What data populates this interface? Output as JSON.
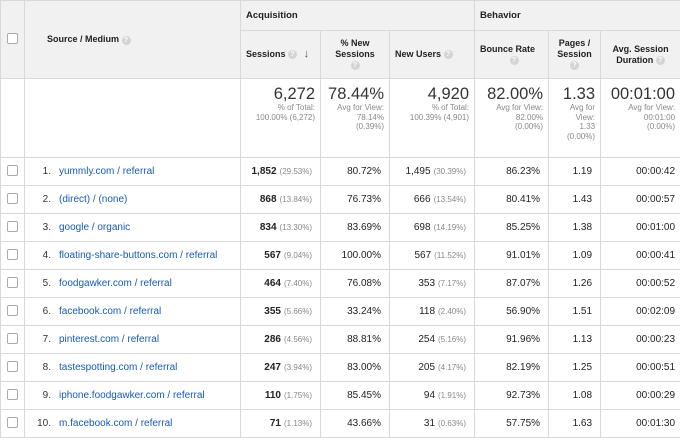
{
  "header": {
    "acquisition": "Acquisition",
    "behavior": "Behavior",
    "columns": {
      "source_medium": "Source / Medium",
      "sessions": "Sessions",
      "pct_new_sessions_1": "% New",
      "pct_new_sessions_2": "Sessions",
      "new_users": "New Users",
      "bounce_rate": "Bounce Rate",
      "pages_session_1": "Pages /",
      "pages_session_2": "Session",
      "avg_duration_1": "Avg. Session",
      "avg_duration_2": "Duration"
    },
    "help_glyph": "?",
    "sort_arrow": "↓"
  },
  "totals": {
    "sessions": {
      "value": "6,272",
      "sub1": "% of Total:",
      "sub2": "100.00% (6,272)"
    },
    "pct_new_sessions": {
      "value": "78.44%",
      "sub1": "Avg for View:",
      "sub2": "78.14%",
      "sub3": "(0.39%)"
    },
    "new_users": {
      "value": "4,920",
      "sub1": "% of Total:",
      "sub2": "100.39% (4,901)"
    },
    "bounce_rate": {
      "value": "82.00%",
      "sub1": "Avg for View:",
      "sub2": "82.00%",
      "sub3": "(0.00%)"
    },
    "pages_session": {
      "value": "1.33",
      "sub1": "Avg for",
      "sub2": "View:",
      "sub3": "1.33",
      "sub4": "(0.00%)"
    },
    "avg_duration": {
      "value": "00:01:00",
      "sub1": "Avg for View:",
      "sub2": "00:01:00",
      "sub3": "(0.00%)"
    }
  },
  "rows": [
    {
      "index": "1.",
      "source": "yummly.com / referral",
      "sessions": "1,852",
      "sessions_pct": "(29.53%)",
      "pct_new": "80.72%",
      "new_users": "1,495",
      "new_users_pct": "(30.39%)",
      "bounce": "86.23%",
      "pages": "1.19",
      "duration": "00:00:42"
    },
    {
      "index": "2.",
      "source": "(direct) / (none)",
      "sessions": "868",
      "sessions_pct": "(13.84%)",
      "pct_new": "76.73%",
      "new_users": "666",
      "new_users_pct": "(13.54%)",
      "bounce": "80.41%",
      "pages": "1.43",
      "duration": "00:00:57"
    },
    {
      "index": "3.",
      "source": "google / organic",
      "sessions": "834",
      "sessions_pct": "(13.30%)",
      "pct_new": "83.69%",
      "new_users": "698",
      "new_users_pct": "(14.19%)",
      "bounce": "85.25%",
      "pages": "1.38",
      "duration": "00:01:00"
    },
    {
      "index": "4.",
      "source": "floating-share-buttons.com / referral",
      "sessions": "567",
      "sessions_pct": "(9.04%)",
      "pct_new": "100.00%",
      "new_users": "567",
      "new_users_pct": "(11.52%)",
      "bounce": "91.01%",
      "pages": "1.09",
      "duration": "00:00:41"
    },
    {
      "index": "5.",
      "source": "foodgawker.com / referral",
      "sessions": "464",
      "sessions_pct": "(7.40%)",
      "pct_new": "76.08%",
      "new_users": "353",
      "new_users_pct": "(7.17%)",
      "bounce": "87.07%",
      "pages": "1.26",
      "duration": "00:00:52"
    },
    {
      "index": "6.",
      "source": "facebook.com / referral",
      "sessions": "355",
      "sessions_pct": "(5.66%)",
      "pct_new": "33.24%",
      "new_users": "118",
      "new_users_pct": "(2.40%)",
      "bounce": "56.90%",
      "pages": "1.51",
      "duration": "00:02:09"
    },
    {
      "index": "7.",
      "source": "pinterest.com / referral",
      "sessions": "286",
      "sessions_pct": "(4.56%)",
      "pct_new": "88.81%",
      "new_users": "254",
      "new_users_pct": "(5.16%)",
      "bounce": "91.96%",
      "pages": "1.13",
      "duration": "00:00:23"
    },
    {
      "index": "8.",
      "source": "tastespotting.com / referral",
      "sessions": "247",
      "sessions_pct": "(3.94%)",
      "pct_new": "83.00%",
      "new_users": "205",
      "new_users_pct": "(4.17%)",
      "bounce": "82.19%",
      "pages": "1.25",
      "duration": "00:00:51"
    },
    {
      "index": "9.",
      "source": "iphone.foodgawker.com / referral",
      "sessions": "110",
      "sessions_pct": "(1.75%)",
      "pct_new": "85.45%",
      "new_users": "94",
      "new_users_pct": "(1.91%)",
      "bounce": "92.73%",
      "pages": "1.08",
      "duration": "00:00:29"
    },
    {
      "index": "10.",
      "source": "m.facebook.com / referral",
      "sessions": "71",
      "sessions_pct": "(1.13%)",
      "pct_new": "43.66%",
      "new_users": "31",
      "new_users_pct": "(0.63%)",
      "bounce": "57.75%",
      "pages": "1.63",
      "duration": "00:01:30"
    }
  ]
}
